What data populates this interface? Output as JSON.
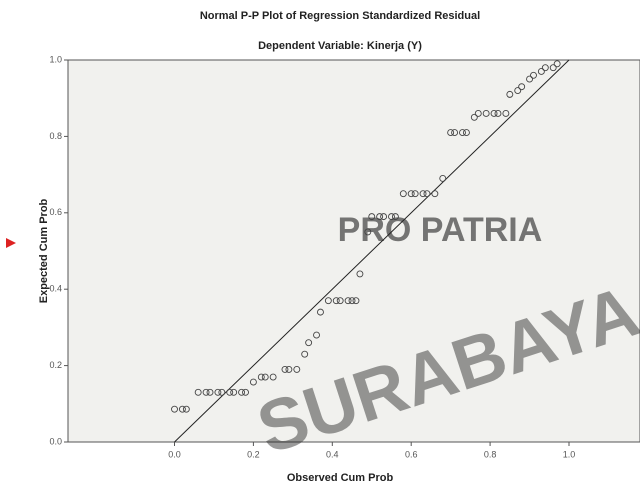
{
  "chart_data": {
    "type": "scatter",
    "title": "Normal P-P Plot of Regression Standardized Residual",
    "subtitle": "Dependent Variable: Kinerja (Y)",
    "x_label": "Observed Cum Prob",
    "y_label": "Expected Cum Prob",
    "watermark": [
      "PRO PATRIA",
      "SURABAYA"
    ],
    "x": [
      0.0,
      0.02,
      0.03,
      0.06,
      0.08,
      0.09,
      0.11,
      0.12,
      0.14,
      0.15,
      0.17,
      0.18,
      0.2,
      0.22,
      0.23,
      0.25,
      0.28,
      0.29,
      0.31,
      0.33,
      0.34,
      0.36,
      0.37,
      0.39,
      0.41,
      0.42,
      0.44,
      0.45,
      0.46,
      0.47,
      0.49,
      0.5,
      0.52,
      0.53,
      0.55,
      0.56,
      0.58,
      0.6,
      0.61,
      0.63,
      0.64,
      0.66,
      0.68,
      0.7,
      0.71,
      0.73,
      0.74,
      0.76,
      0.77,
      0.79,
      0.81,
      0.82,
      0.84,
      0.85,
      0.87,
      0.88,
      0.9,
      0.91,
      0.93,
      0.94,
      0.96,
      0.97
    ],
    "values": [
      0.086,
      0.086,
      0.086,
      0.13,
      0.13,
      0.13,
      0.13,
      0.13,
      0.13,
      0.13,
      0.13,
      0.13,
      0.157,
      0.17,
      0.17,
      0.17,
      0.19,
      0.19,
      0.19,
      0.23,
      0.26,
      0.28,
      0.34,
      0.37,
      0.37,
      0.37,
      0.37,
      0.37,
      0.37,
      0.44,
      0.55,
      0.59,
      0.59,
      0.59,
      0.59,
      0.59,
      0.65,
      0.65,
      0.65,
      0.65,
      0.65,
      0.65,
      0.69,
      0.81,
      0.81,
      0.81,
      0.81,
      0.85,
      0.86,
      0.86,
      0.86,
      0.86,
      0.86,
      0.91,
      0.92,
      0.93,
      0.95,
      0.96,
      0.97,
      0.98,
      0.98,
      0.99
    ],
    "color": "#444444",
    "diagonal": {
      "x": [
        0,
        1
      ],
      "y": [
        0,
        1
      ]
    },
    "xlim": [
      -0.27,
      1.18
    ],
    "ylim": [
      0,
      1
    ],
    "xticks": [
      {
        "value": 0,
        "label": "0.0"
      },
      {
        "value": 0.2,
        "label": "0.2"
      },
      {
        "value": 0.4,
        "label": "0.4"
      },
      {
        "value": 0.6,
        "label": "0.6"
      },
      {
        "value": 0.8,
        "label": "0.8"
      },
      {
        "value": 1,
        "label": "1.0"
      }
    ],
    "yticks": [
      {
        "value": 0,
        "label": "0.0"
      },
      {
        "value": 0.2,
        "label": "0.2"
      },
      {
        "value": 0.4,
        "label": "0.4"
      },
      {
        "value": 0.6,
        "label": "0.6"
      },
      {
        "value": 0.8,
        "label": "0.8"
      },
      {
        "value": 1,
        "label": "1.0"
      }
    ]
  }
}
